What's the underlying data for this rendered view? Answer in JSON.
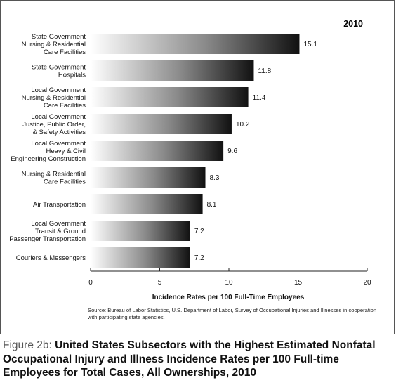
{
  "chart_data": {
    "type": "bar",
    "orientation": "horizontal",
    "year": "2010",
    "categories": [
      [
        "State Government",
        "Nursing & Residential",
        "Care Facilities"
      ],
      [
        "State Government",
        "Hospitals"
      ],
      [
        "Local Government",
        "Nursing & Residential",
        "Care Facilities"
      ],
      [
        "Local Government",
        "Justice, Public Order,",
        "& Safety Activities"
      ],
      [
        "Local Government",
        "Heavy & Civil",
        "Engineering Construction"
      ],
      [
        "Nursing & Residential",
        "Care Facilities"
      ],
      [
        "Air Transportation"
      ],
      [
        "Local Government",
        "Transit & Ground",
        "Passenger Transportation"
      ],
      [
        "Couriers & Messengers"
      ]
    ],
    "values": [
      15.1,
      11.8,
      11.4,
      10.2,
      9.6,
      8.3,
      8.1,
      7.2,
      7.2
    ],
    "value_labels": [
      "15.1",
      "11.8",
      "11.4",
      "10.2",
      "9.6",
      "8.3",
      "8.1",
      "7.2",
      "7.2"
    ],
    "xlabel": "Incidence Rates per 100 Full-Time Employees",
    "xlim": [
      0,
      20
    ],
    "xticks": [
      "0",
      "5",
      "10",
      "15",
      "20"
    ],
    "grid": false,
    "bar_gradient": [
      "#ffffff",
      "#111111"
    ]
  },
  "source": "Source: Bureau of Labor Statistics, U.S. Department of Labor, Survey of Occupational Injuries and Illnesses in cooperation with participating state agencies.",
  "caption": {
    "prefix": "Figure 2b:",
    "title": "United States Subsectors with the Highest Estimated Nonfatal Occupational Injury and Illness Incidence Rates per 100 Full-time Employees for Total Cases, All Ownerships, 2010"
  }
}
